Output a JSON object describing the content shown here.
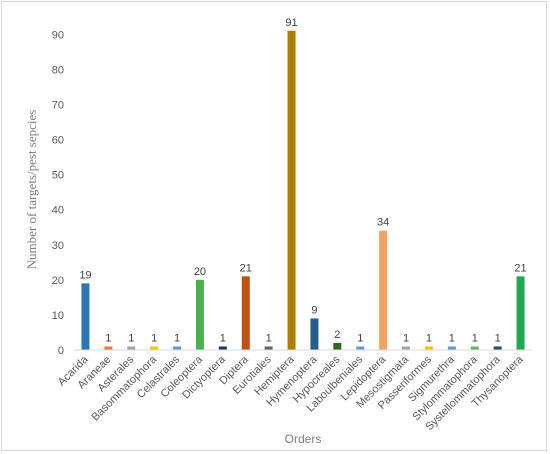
{
  "chart_data": {
    "type": "bar",
    "title": "",
    "xlabel": "Orders",
    "ylabel": "Number of targets/pest sepcies",
    "ylim": [
      0,
      90
    ],
    "yticks": [
      0,
      10,
      20,
      30,
      40,
      50,
      60,
      70,
      80,
      90
    ],
    "grid": false,
    "categories": [
      "Acarida",
      "Araneae",
      "Asterales",
      "Basommatophora",
      "Celastrales",
      "Coleoptera",
      "Dictyoptera",
      "Diptera",
      "Eurotiales",
      "Hemiptera",
      "Hymenoptera",
      "Hypocreales",
      "Laboulbeniales",
      "Lepidoptera",
      "Mesostigmata",
      "Passeriformes",
      "Sigmurethra",
      "Stylommatophora",
      "Systellommatophora",
      "Thysanoptera"
    ],
    "values": [
      19,
      1,
      1,
      1,
      1,
      20,
      1,
      21,
      1,
      91,
      9,
      2,
      1,
      34,
      1,
      1,
      1,
      1,
      1,
      21
    ],
    "colors": [
      "#2e75b6",
      "#ed7d31",
      "#a5a5a5",
      "#ffc000",
      "#5b9bd5",
      "#4caf50",
      "#1f3864",
      "#c0500f",
      "#636363",
      "#b07d00",
      "#255e91",
      "#2d6a1f",
      "#5b9bd5",
      "#f4a261",
      "#a5a5a5",
      "#ffc000",
      "#5b9bd5",
      "#5cb85c",
      "#1f4e79",
      "#1fa84f"
    ]
  }
}
